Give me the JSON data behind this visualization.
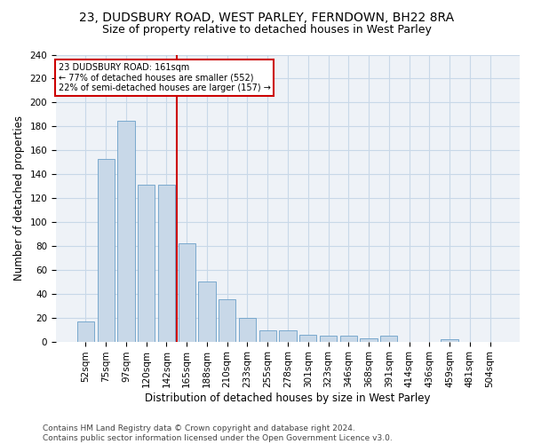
{
  "title_line1": "23, DUDSBURY ROAD, WEST PARLEY, FERNDOWN, BH22 8RA",
  "title_line2": "Size of property relative to detached houses in West Parley",
  "xlabel": "Distribution of detached houses by size in West Parley",
  "ylabel": "Number of detached properties",
  "categories": [
    "52sqm",
    "75sqm",
    "97sqm",
    "120sqm",
    "142sqm",
    "165sqm",
    "188sqm",
    "210sqm",
    "233sqm",
    "255sqm",
    "278sqm",
    "301sqm",
    "323sqm",
    "346sqm",
    "368sqm",
    "391sqm",
    "414sqm",
    "436sqm",
    "459sqm",
    "481sqm",
    "504sqm"
  ],
  "bar_heights": [
    17,
    153,
    185,
    131,
    131,
    82,
    50,
    35,
    20,
    9,
    9,
    6,
    5,
    5,
    3,
    5,
    0,
    0,
    2,
    0,
    0
  ],
  "bar_color": "#c8d8e8",
  "bar_edge_color": "#6a9fc8",
  "property_line_index": 4.5,
  "property_line_color": "#cc0000",
  "annotation_text": "23 DUDSBURY ROAD: 161sqm\n← 77% of detached houses are smaller (552)\n22% of semi-detached houses are larger (157) →",
  "annotation_box_color": "#ffffff",
  "annotation_box_edge_color": "#cc0000",
  "ylim": [
    0,
    240
  ],
  "yticks": [
    0,
    20,
    40,
    60,
    80,
    100,
    120,
    140,
    160,
    180,
    200,
    220,
    240
  ],
  "grid_color": "#c8d8e8",
  "background_color": "#eef2f7",
  "footer_text": "Contains HM Land Registry data © Crown copyright and database right 2024.\nContains public sector information licensed under the Open Government Licence v3.0.",
  "title_fontsize": 10,
  "subtitle_fontsize": 9,
  "label_fontsize": 8.5,
  "tick_fontsize": 7.5,
  "footer_fontsize": 6.5
}
